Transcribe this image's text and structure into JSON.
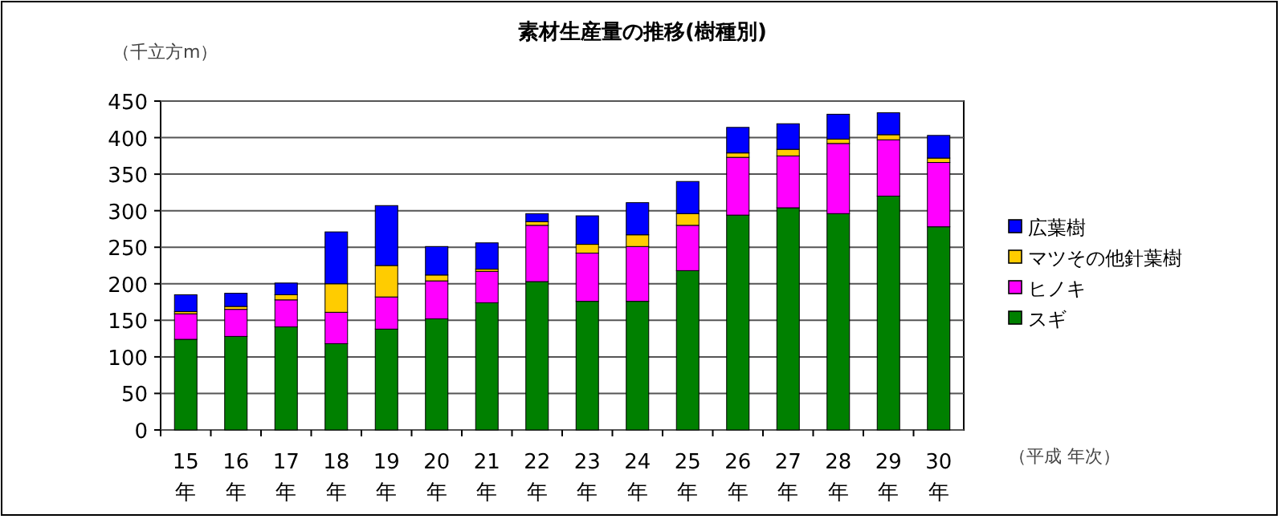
{
  "chart_data": {
    "type": "bar",
    "stacked": true,
    "title": "素材生産量の推移(樹種別)",
    "ylabel": "（千立方m）",
    "xlabel": "（平成 年次）",
    "categories": [
      "15年",
      "16年",
      "17年",
      "18年",
      "19年",
      "20年",
      "21年",
      "22年",
      "23年",
      "24年",
      "25年",
      "26年",
      "27年",
      "28年",
      "29年",
      "30年"
    ],
    "series": [
      {
        "name": "スギ",
        "color": "#008000",
        "values": [
          124,
          128,
          141,
          118,
          138,
          152,
          174,
          203,
          176,
          176,
          218,
          294,
          304,
          296,
          320,
          278
        ]
      },
      {
        "name": "ヒノキ",
        "color": "#ff00ff",
        "values": [
          35,
          37,
          37,
          43,
          44,
          52,
          43,
          77,
          66,
          75,
          62,
          79,
          71,
          96,
          77,
          88
        ]
      },
      {
        "name": "マツその他針葉樹",
        "color": "#ffcc00",
        "values": [
          3,
          4,
          7,
          39,
          43,
          8,
          3,
          5,
          12,
          16,
          16,
          6,
          9,
          6,
          7,
          6
        ]
      },
      {
        "name": "広葉樹",
        "color": "#0000ff",
        "values": [
          23,
          18,
          16,
          71,
          82,
          39,
          36,
          11,
          39,
          44,
          44,
          35,
          35,
          34,
          30,
          31
        ]
      }
    ],
    "ylim": [
      0,
      450
    ],
    "yticks": [
      0,
      50,
      100,
      150,
      200,
      250,
      300,
      350,
      400,
      450
    ],
    "grid": "y",
    "legend": "right"
  }
}
